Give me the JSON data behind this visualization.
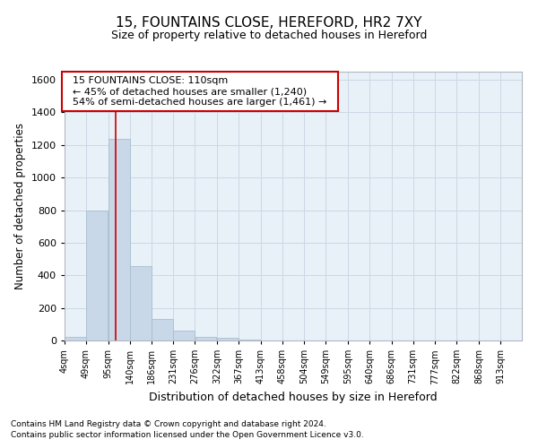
{
  "title_line1": "15, FOUNTAINS CLOSE, HEREFORD, HR2 7XY",
  "title_line2": "Size of property relative to detached houses in Hereford",
  "xlabel": "Distribution of detached houses by size in Hereford",
  "ylabel": "Number of detached properties",
  "footnote1": "Contains HM Land Registry data © Crown copyright and database right 2024.",
  "footnote2": "Contains public sector information licensed under the Open Government Licence v3.0.",
  "annotation_line1": "15 FOUNTAINS CLOSE: 110sqm",
  "annotation_line2": "← 45% of detached houses are smaller (1,240)",
  "annotation_line3": "54% of semi-detached houses are larger (1,461) →",
  "bar_color": "#c8d8e8",
  "bar_edge_color": "#a8bece",
  "grid_color": "#ccd8e4",
  "bg_color": "#e8f0f8",
  "redline_x": 110,
  "categories": [
    "4sqm",
    "49sqm",
    "95sqm",
    "140sqm",
    "186sqm",
    "231sqm",
    "276sqm",
    "322sqm",
    "367sqm",
    "413sqm",
    "458sqm",
    "504sqm",
    "549sqm",
    "595sqm",
    "640sqm",
    "686sqm",
    "731sqm",
    "777sqm",
    "822sqm",
    "868sqm",
    "913sqm"
  ],
  "bin_starts": [
    4,
    49,
    95,
    140,
    186,
    231,
    276,
    322,
    367,
    413,
    458,
    504,
    549,
    595,
    640,
    686,
    731,
    777,
    822,
    868,
    913
  ],
  "bin_width": 45,
  "values": [
    22,
    800,
    1240,
    455,
    130,
    62,
    22,
    14,
    6,
    0,
    0,
    0,
    0,
    0,
    0,
    0,
    0,
    0,
    0,
    0,
    0
  ],
  "ylim": [
    0,
    1650
  ],
  "yticks": [
    0,
    200,
    400,
    600,
    800,
    1000,
    1200,
    1400,
    1600
  ]
}
